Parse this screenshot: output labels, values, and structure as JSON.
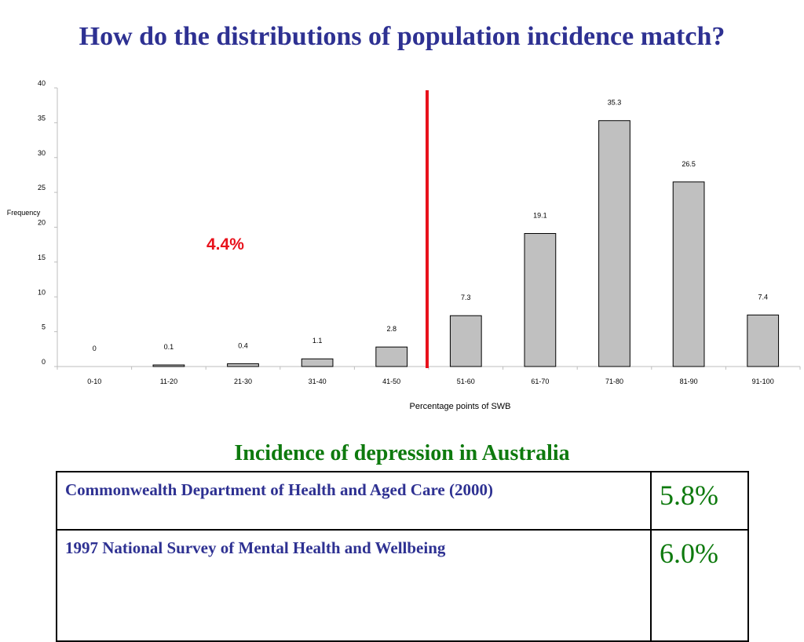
{
  "slide": {
    "title": "How do the distributions of population incidence match?"
  },
  "chart_data": {
    "type": "bar",
    "categories": [
      "0-10",
      "11-20",
      "21-30",
      "31-40",
      "41-50",
      "51-60",
      "61-70",
      "71-80",
      "81-90",
      "91-100"
    ],
    "values": [
      0,
      0.1,
      0.4,
      1.1,
      2.8,
      7.3,
      19.1,
      35.3,
      26.5,
      7.4
    ],
    "value_labels": [
      "0",
      "0.1",
      "0.4",
      "1.1",
      "2.8",
      "7.3",
      "19.1",
      "35.3",
      "26.5",
      "7.4"
    ],
    "title": "",
    "xlabel": "Percentage points of SWB",
    "ylabel": "Frequency",
    "ylim": [
      0,
      40
    ],
    "yticks": [
      0,
      5,
      10,
      15,
      20,
      25,
      30,
      35,
      40
    ],
    "grid": false,
    "legend": "none",
    "bar_color": "#c0c0c0",
    "threshold_line": {
      "between": [
        "41-50",
        "51-60"
      ],
      "color": "#e8111b"
    },
    "annotation": {
      "text": "4.4%",
      "color": "#e8111b"
    }
  },
  "table": {
    "title": "Incidence of depression in Australia",
    "rows": [
      {
        "source": "Commonwealth Department of Health and Aged Care (2000)",
        "rate": "5.8%"
      },
      {
        "source": "1997 National Survey of Mental Health and Wellbeing",
        "rate": "6.0%"
      }
    ]
  },
  "colors": {
    "title": "#2e3192",
    "table_title": "#0e7a0e",
    "rate_text": "#0e7a0e",
    "source_text": "#2e3192"
  }
}
